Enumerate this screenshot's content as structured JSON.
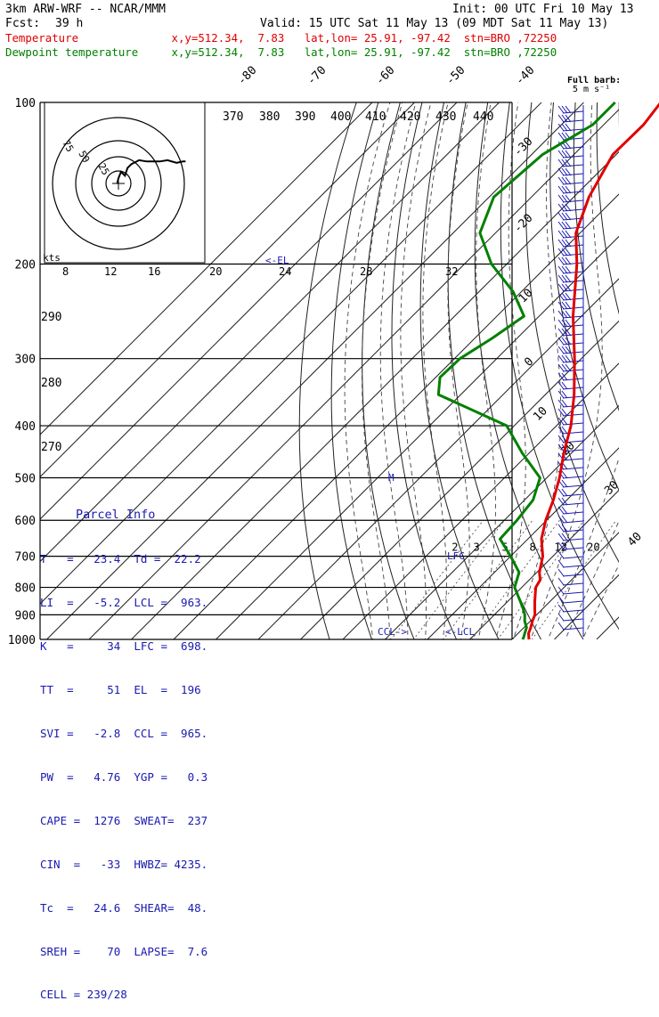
{
  "header": {
    "model": "3km ARW-WRF -- NCAR/MMM",
    "init": "Init: 00 UTC Fri 10 May 13",
    "fcst_label": "Fcst:",
    "fcst_value": "39 h",
    "valid": "Valid: 15 UTC Sat 11 May 13 (09 MDT Sat 11 May 13)",
    "temp_line": "Temperature              x,y=512.34,  7.83   lat,lon= 25.91, -97.42  stn=BRO ,72250",
    "dew_line": "Dewpoint temperature     x,y=512.34,  7.83   lat,lon= 25.91, -97.42  stn=BRO ,72250",
    "barb_title": "Full barb:",
    "barb_unit": "5 m s⁻¹"
  },
  "colors": {
    "temperature": "#e00000",
    "dewpoint": "#008000",
    "axes": "#000000",
    "parcel_text": "#1a1ab0",
    "adiabat": "#333333"
  },
  "chart_data": {
    "type": "line",
    "title": "",
    "ylabel": "",
    "pressure_ticks": [
      100,
      200,
      300,
      400,
      500,
      600,
      700,
      800,
      900,
      1000
    ],
    "isotherm_labels": [
      -80,
      -70,
      -60,
      -50,
      -40,
      -30,
      -20,
      -10,
      0,
      10,
      20,
      30,
      40
    ],
    "theta_labels": [
      370,
      380,
      390,
      400,
      410,
      420,
      430,
      440,
      290,
      280,
      270
    ],
    "mixing_ratio_labels": [
      2,
      3,
      5,
      8,
      12,
      20
    ],
    "level_labels": [
      "<-EL",
      "LFC",
      "<-LCL",
      "CCL->",
      "M"
    ],
    "series": [
      {
        "name": "Temperature",
        "points": [
          [
            1000,
            24.0
          ],
          [
            990,
            23.4
          ],
          [
            975,
            22.5
          ],
          [
            950,
            21.6
          ],
          [
            925,
            20.5
          ],
          [
            900,
            19.6
          ],
          [
            875,
            18.0
          ],
          [
            850,
            16.4
          ],
          [
            800,
            13.3
          ],
          [
            775,
            12.6
          ],
          [
            750,
            10.6
          ],
          [
            700,
            7.6
          ],
          [
            650,
            3.2
          ],
          [
            600,
            -0.2
          ],
          [
            550,
            -3.2
          ],
          [
            500,
            -7.0
          ],
          [
            450,
            -11.8
          ],
          [
            400,
            -16.6
          ],
          [
            350,
            -23.2
          ],
          [
            300,
            -31.6
          ],
          [
            250,
            -42.0
          ],
          [
            200,
            -53.4
          ],
          [
            175,
            -61.0
          ],
          [
            150,
            -66.4
          ],
          [
            125,
            -70.8
          ],
          [
            110,
            -70.6
          ],
          [
            100,
            -71.8
          ]
        ]
      },
      {
        "name": "Dewpoint temperature",
        "points": [
          [
            1000,
            22.5
          ],
          [
            990,
            22.2
          ],
          [
            975,
            21.6
          ],
          [
            950,
            20.6
          ],
          [
            925,
            18.7
          ],
          [
            900,
            17.2
          ],
          [
            875,
            15.2
          ],
          [
            850,
            13.0
          ],
          [
            800,
            8.3
          ],
          [
            750,
            5.8
          ],
          [
            700,
            0.0
          ],
          [
            650,
            -6.6
          ],
          [
            600,
            -7.0
          ],
          [
            550,
            -8.0
          ],
          [
            500,
            -11.6
          ],
          [
            450,
            -21.6
          ],
          [
            400,
            -31.8
          ],
          [
            350,
            -55.3
          ],
          [
            325,
            -59.0
          ],
          [
            300,
            -58.7
          ],
          [
            275,
            -55.9
          ],
          [
            250,
            -53.6
          ],
          [
            225,
            -62.0
          ],
          [
            200,
            -73.6
          ],
          [
            175,
            -83.7
          ],
          [
            150,
            -88.9
          ],
          [
            125,
            -87.4
          ],
          [
            110,
            -82.6
          ],
          [
            100,
            -82.6
          ]
        ]
      }
    ],
    "hodograph": {
      "speed_unit": "kts",
      "rings": [
        10,
        25,
        50,
        75
      ],
      "ring_labels": [
        25,
        50,
        75
      ],
      "speed_ticks": [
        8,
        12,
        16,
        20,
        24,
        28,
        32
      ],
      "u": [
        -1,
        0,
        2,
        5,
        7,
        10,
        16,
        22,
        32,
        38,
        45,
        50,
        52
      ],
      "v": [
        0,
        4,
        9,
        6,
        12,
        15,
        18,
        17,
        17,
        18,
        16,
        17,
        17
      ]
    },
    "wind_barbs_side": "right"
  },
  "parcel": {
    "title": "Parcel Info",
    "rows": [
      "T   =   23.4  Td =  22.2",
      "LI  =   -5.2  LCL =  963.",
      "K   =     34  LFC =  698.",
      "TT  =     51  EL  =  196",
      "SVI =   -2.8  CCL =  965.",
      "PW  =   4.76  YGP =   0.3",
      "CAPE =  1276  SWEAT=  237",
      "CIN  =   -33  HWBZ= 4235.",
      "Tc  =   24.6  SHEAR=  48.",
      "SREH =    70  LAPSE=  7.6",
      "CELL = 239/28"
    ]
  }
}
